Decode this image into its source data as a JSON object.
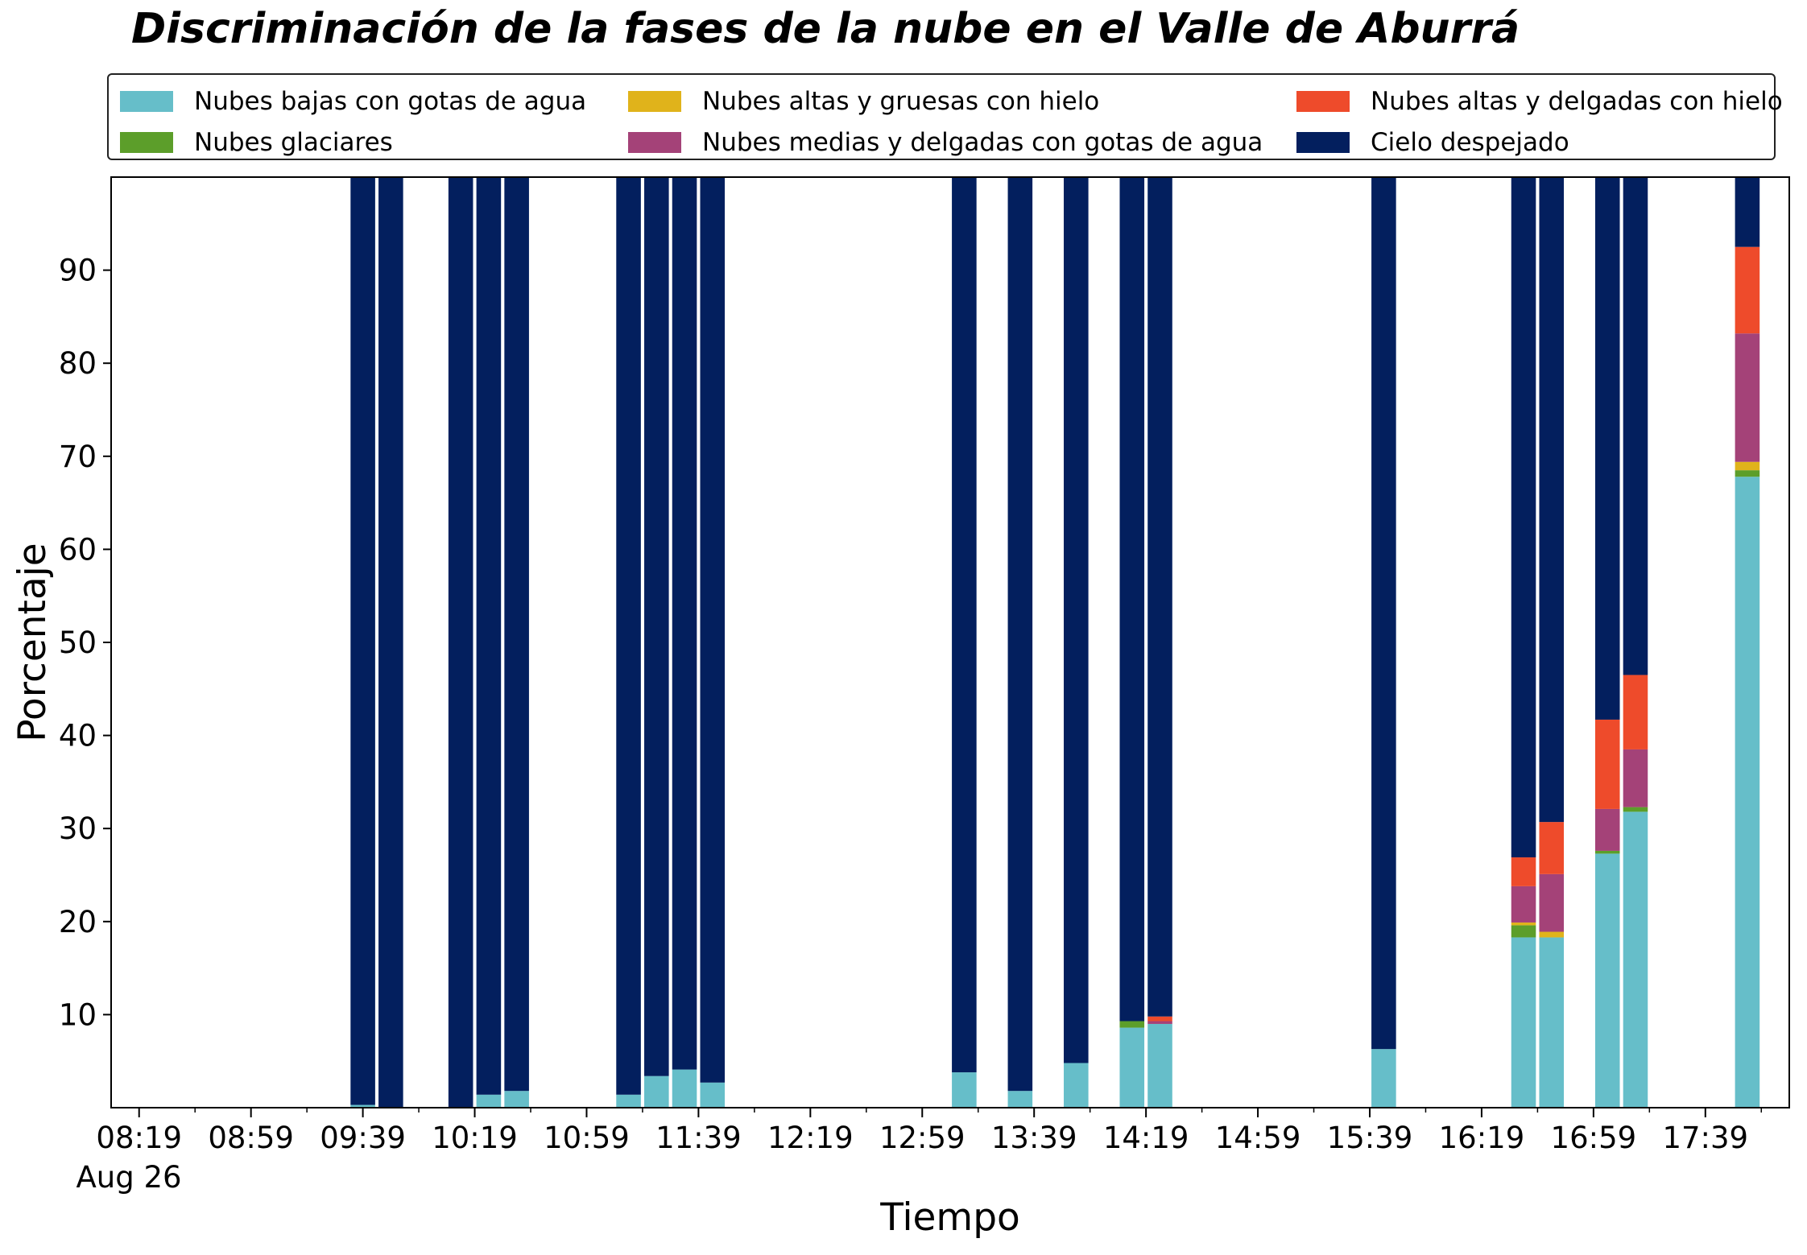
{
  "chart_data": {
    "type": "bar",
    "stacked": true,
    "title": "Discriminación de la fases de la nube en el Valle de Aburrá",
    "xlabel": "Tiempo",
    "ylabel": "Porcentaje",
    "xlim": [
      "08:09",
      "18:09"
    ],
    "ylim": [
      0,
      100
    ],
    "yticks": [
      "10",
      "20",
      "30",
      "40",
      "50",
      "60",
      "70",
      "80",
      "90"
    ],
    "xticks": [
      "08:19",
      "08:59",
      "09:39",
      "10:19",
      "10:59",
      "11:39",
      "12:19",
      "12:59",
      "13:39",
      "14:19",
      "14:59",
      "15:39",
      "16:19",
      "16:59",
      "17:39"
    ],
    "date_label": "Aug 26",
    "grid": false,
    "legend_position": "top",
    "series": [
      {
        "name": "Nubes bajas con gotas de agua",
        "color": "#66bec9"
      },
      {
        "name": "Nubes glaciares",
        "color": "#5c9e2a"
      },
      {
        "name": "Nubes altas y gruesas con hielo",
        "color": "#e0b31b"
      },
      {
        "name": "Nubes medias y delgadas con gotas de agua",
        "color": "#a44278"
      },
      {
        "name": "Nubes altas y delgadas con hielo",
        "color": "#ee4b2b"
      },
      {
        "name": "Cielo despejado",
        "color": "#031f5e"
      }
    ],
    "bars": [
      {
        "time": "09:39",
        "values": [
          0.3,
          0,
          0,
          0,
          0,
          99.7
        ]
      },
      {
        "time": "09:49",
        "values": [
          0,
          0,
          0,
          0,
          0,
          100
        ]
      },
      {
        "time": "10:14",
        "values": [
          0,
          0,
          0,
          0,
          0,
          100
        ]
      },
      {
        "time": "10:24",
        "values": [
          1.4,
          0,
          0,
          0,
          0,
          98.6
        ]
      },
      {
        "time": "10:34",
        "values": [
          1.8,
          0,
          0,
          0,
          0,
          98.2
        ]
      },
      {
        "time": "11:14",
        "values": [
          1.4,
          0,
          0,
          0,
          0,
          98.6
        ]
      },
      {
        "time": "11:24",
        "values": [
          3.4,
          0,
          0,
          0,
          0,
          96.6
        ]
      },
      {
        "time": "11:34",
        "values": [
          4.1,
          0,
          0,
          0,
          0,
          95.9
        ]
      },
      {
        "time": "11:44",
        "values": [
          2.7,
          0,
          0,
          0,
          0,
          97.3
        ]
      },
      {
        "time": "13:14",
        "values": [
          3.8,
          0,
          0,
          0,
          0,
          96.2
        ]
      },
      {
        "time": "13:34",
        "values": [
          1.8,
          0,
          0,
          0,
          0,
          98.2
        ]
      },
      {
        "time": "13:54",
        "values": [
          4.8,
          0,
          0,
          0,
          0,
          95.2
        ]
      },
      {
        "time": "14:14",
        "values": [
          8.6,
          0.7,
          0,
          0,
          0,
          90.7
        ]
      },
      {
        "time": "14:24",
        "values": [
          9.0,
          0,
          0,
          0.3,
          0.5,
          90.2
        ]
      },
      {
        "time": "15:44",
        "values": [
          6.3,
          0,
          0,
          0,
          0,
          93.7
        ]
      },
      {
        "time": "16:34",
        "values": [
          18.3,
          1.3,
          0.3,
          3.9,
          3.1,
          73.1
        ]
      },
      {
        "time": "16:44",
        "values": [
          18.3,
          0,
          0.6,
          6.2,
          5.6,
          69.3
        ]
      },
      {
        "time": "17:04",
        "values": [
          27.3,
          0.3,
          0,
          4.5,
          9.6,
          58.3
        ]
      },
      {
        "time": "17:14",
        "values": [
          31.8,
          0.5,
          0,
          6.2,
          8.0,
          53.5
        ]
      },
      {
        "time": "17:54",
        "values": [
          67.8,
          0.7,
          0.9,
          13.8,
          9.3,
          7.5
        ]
      }
    ]
  }
}
